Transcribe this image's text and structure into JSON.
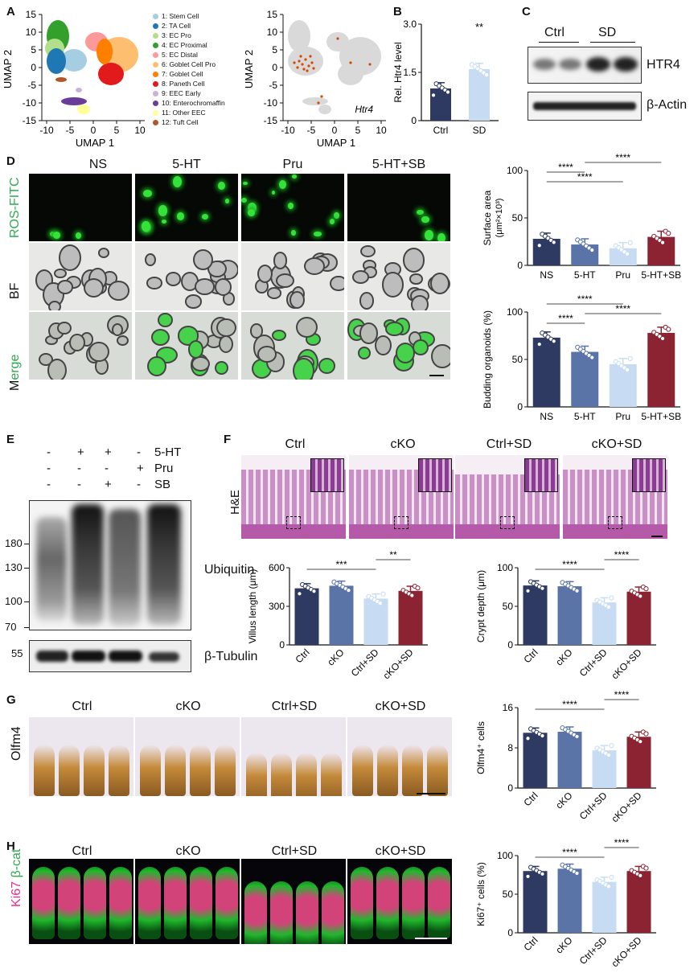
{
  "panels": {
    "A": "A",
    "B": "B",
    "C": "C",
    "D": "D",
    "E": "E",
    "F": "F",
    "G": "G",
    "H": "H"
  },
  "umap": {
    "xlabel": "UMAP 1",
    "ylabel": "UMAP 2",
    "xticks": [
      "-10",
      "-5",
      "0",
      "5",
      "10"
    ],
    "yticks": [
      "15",
      "10",
      "5",
      "0",
      "-5",
      "-10",
      "-15"
    ],
    "gene_label": "Htr4",
    "clusters": [
      {
        "label": "1: Stem Cell",
        "color": "#a6cee3"
      },
      {
        "label": "2: TA Cell",
        "color": "#1f78b4"
      },
      {
        "label": "3: EC Pro",
        "color": "#b2df8a"
      },
      {
        "label": "4: EC Proximal",
        "color": "#33a02c"
      },
      {
        "label": "5: EC Distal",
        "color": "#fb9a99"
      },
      {
        "label": "6: Goblet Cell Pro",
        "color": "#fdbf6f"
      },
      {
        "label": "7: Goblet Cell",
        "color": "#ff7f00"
      },
      {
        "label": "8: Paneth Cell",
        "color": "#e31a1c"
      },
      {
        "label": "9: EEC Early",
        "color": "#cab2d6"
      },
      {
        "label": "10: Enterochromaffin",
        "color": "#6a3d9a"
      },
      {
        "label": "11: Other EEC",
        "color": "#ffff99"
      },
      {
        "label": "12: Tuft Cell",
        "color": "#b15928"
      }
    ]
  },
  "panelB": {
    "ylabel": "Rel. Htr4 level",
    "sig": "**"
  },
  "panelC": {
    "groups": [
      "Ctrl",
      "SD"
    ],
    "bands": [
      "HTR4",
      "β-Actin"
    ]
  },
  "panelD": {
    "columns": [
      "NS",
      "5-HT",
      "Pru",
      "5-HT+SB"
    ],
    "rows": [
      "ROS-FITC",
      "BF",
      "Merge"
    ]
  },
  "panelE": {
    "treatments": [
      {
        "name": "5-HT",
        "values": [
          "-",
          "+",
          "+",
          "-"
        ]
      },
      {
        "name": "Pru",
        "values": [
          "-",
          "-",
          "-",
          "+"
        ]
      },
      {
        "name": "SB",
        "values": [
          "-",
          "-",
          "+",
          "-"
        ]
      }
    ],
    "ubiquitin_markers": [
      "180",
      "130",
      "100",
      "70"
    ],
    "tubulin_marker": "55",
    "bands": [
      "Ubiquitin",
      "β-Tubulin"
    ]
  },
  "panelF": {
    "columns": [
      "Ctrl",
      "cKO",
      "Ctrl+SD",
      "cKO+SD"
    ],
    "row": "H&E"
  },
  "panelG": {
    "columns": [
      "Ctrl",
      "cKO",
      "Ctrl+SD",
      "cKO+SD"
    ],
    "row": "Olfm4"
  },
  "panelH": {
    "columns": [
      "Ctrl",
      "cKO",
      "Ctrl+SD",
      "cKO+SD"
    ],
    "row_a": "Ki67",
    "row_b": "β-cat"
  },
  "chart_data": [
    {
      "id": "B",
      "type": "bar",
      "categories": [
        "Ctrl",
        "SD"
      ],
      "values": [
        1.0,
        1.6
      ],
      "ylabel": "Rel. Htr4 level",
      "ylim": [
        0,
        3
      ],
      "yticks": [
        "0",
        "1.5",
        "3.0"
      ],
      "colors": [
        "#2e3a62",
        "#c7dcf2"
      ],
      "annotations": [
        {
          "text": "**",
          "over": "SD"
        }
      ]
    },
    {
      "id": "D1",
      "type": "bar",
      "categories": [
        "NS",
        "5-HT",
        "Pru",
        "5-HT+SB"
      ],
      "values": [
        28,
        22,
        18,
        30
      ],
      "ylabel": "Surface area",
      "ylabel2": "(μm²×10³)",
      "ylim": [
        0,
        100
      ],
      "yticks": [
        "0",
        "50",
        "100"
      ],
      "colors": [
        "#2e3a62",
        "#5a74a8",
        "#c7dcf2",
        "#8b2332"
      ],
      "comparisons": [
        {
          "text": "****",
          "from": 0,
          "to": 2
        },
        {
          "text": "****",
          "from": 0,
          "to": 1
        },
        {
          "text": "****",
          "from": 1,
          "to": 3
        }
      ]
    },
    {
      "id": "D2",
      "type": "bar",
      "categories": [
        "NS",
        "5-HT",
        "Pru",
        "5-HT+SB"
      ],
      "values": [
        73,
        58,
        45,
        78
      ],
      "ylabel": "Budding organoids (%)",
      "ylim": [
        0,
        100
      ],
      "yticks": [
        "0",
        "50",
        "100"
      ],
      "colors": [
        "#2e3a62",
        "#5a74a8",
        "#c7dcf2",
        "#8b2332"
      ],
      "comparisons": [
        {
          "text": "****",
          "from": 0,
          "to": 1
        },
        {
          "text": "****",
          "from": 1,
          "to": 3
        },
        {
          "text": "****",
          "from": 0,
          "to": 2
        }
      ]
    },
    {
      "id": "F1",
      "type": "bar",
      "categories": [
        "Ctrl",
        "cKO",
        "Ctrl+SD",
        "cKO+SD"
      ],
      "values": [
        440,
        460,
        360,
        420
      ],
      "ylabel": "Villus length (μm)",
      "ylim": [
        0,
        600
      ],
      "yticks": [
        "0",
        "300",
        "600"
      ],
      "colors": [
        "#2e3a62",
        "#5a74a8",
        "#c7dcf2",
        "#8b2332"
      ],
      "comparisons": [
        {
          "text": "***",
          "from": 0,
          "to": 2
        },
        {
          "text": "**",
          "from": 2,
          "to": 3
        }
      ]
    },
    {
      "id": "F2",
      "type": "bar",
      "categories": [
        "Ctrl",
        "cKO",
        "Ctrl+SD",
        "cKO+SD"
      ],
      "values": [
        77,
        76,
        55,
        69
      ],
      "ylabel": "Crypt depth (μm)",
      "ylim": [
        0,
        100
      ],
      "yticks": [
        "0",
        "50",
        "100"
      ],
      "colors": [
        "#2e3a62",
        "#5a74a8",
        "#c7dcf2",
        "#8b2332"
      ],
      "comparisons": [
        {
          "text": "****",
          "from": 0,
          "to": 2
        },
        {
          "text": "****",
          "from": 2,
          "to": 3
        }
      ]
    },
    {
      "id": "G",
      "type": "bar",
      "categories": [
        "Ctrl",
        "cKO",
        "Ctrl+SD",
        "cKO+SD"
      ],
      "values": [
        11,
        11.2,
        7.5,
        10.2
      ],
      "ylabel": "Olfm4⁺ cells",
      "ylim": [
        0,
        16
      ],
      "yticks": [
        "0",
        "8",
        "16"
      ],
      "colors": [
        "#2e3a62",
        "#5a74a8",
        "#c7dcf2",
        "#8b2332"
      ],
      "comparisons": [
        {
          "text": "****",
          "from": 0,
          "to": 2
        },
        {
          "text": "****",
          "from": 2,
          "to": 3
        }
      ]
    },
    {
      "id": "H",
      "type": "bar",
      "categories": [
        "Ctrl",
        "cKO",
        "Ctrl+SD",
        "cKO+SD"
      ],
      "values": [
        80,
        83,
        66,
        80
      ],
      "ylabel": "Ki67⁺ cells (%)",
      "ylim": [
        0,
        100
      ],
      "yticks": [
        "0",
        "50",
        "100"
      ],
      "colors": [
        "#2e3a62",
        "#5a74a8",
        "#c7dcf2",
        "#8b2332"
      ],
      "comparisons": [
        {
          "text": "****",
          "from": 0,
          "to": 2
        },
        {
          "text": "****",
          "from": 2,
          "to": 3
        }
      ]
    }
  ]
}
